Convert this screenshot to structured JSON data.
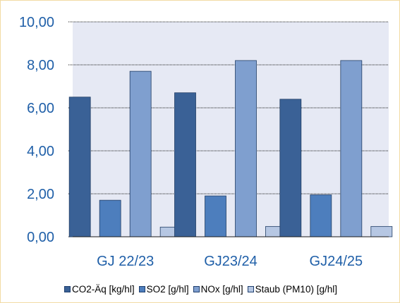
{
  "chart_data": {
    "type": "bar",
    "categories": [
      "GJ 22/23",
      "GJ23/24",
      "GJ24/25"
    ],
    "series": [
      {
        "name": "CO2-Äq [kg/hl]",
        "color": "#3a6196",
        "values": [
          6.5,
          6.7,
          6.4
        ]
      },
      {
        "name": "SO2 [g/hl]",
        "color": "#4d7ebd",
        "values": [
          1.7,
          1.9,
          1.95
        ]
      },
      {
        "name": "NOx [g/hl]",
        "color": "#7f9fcf",
        "values": [
          7.7,
          8.2,
          8.2
        ]
      },
      {
        "name": "Staub (PM10) [g/hl]",
        "color": "#b6c7e3",
        "values": [
          0.45,
          0.48,
          0.48
        ]
      }
    ],
    "y_ticks": [
      "0,00",
      "2,00",
      "4,00",
      "6,00",
      "8,00",
      "10,00"
    ],
    "ylim": [
      0,
      10
    ],
    "grid": "horizontal",
    "plot_background": "#e6e9f4",
    "axis_text_color": "#1f5fa8",
    "legend_position": "bottom"
  }
}
